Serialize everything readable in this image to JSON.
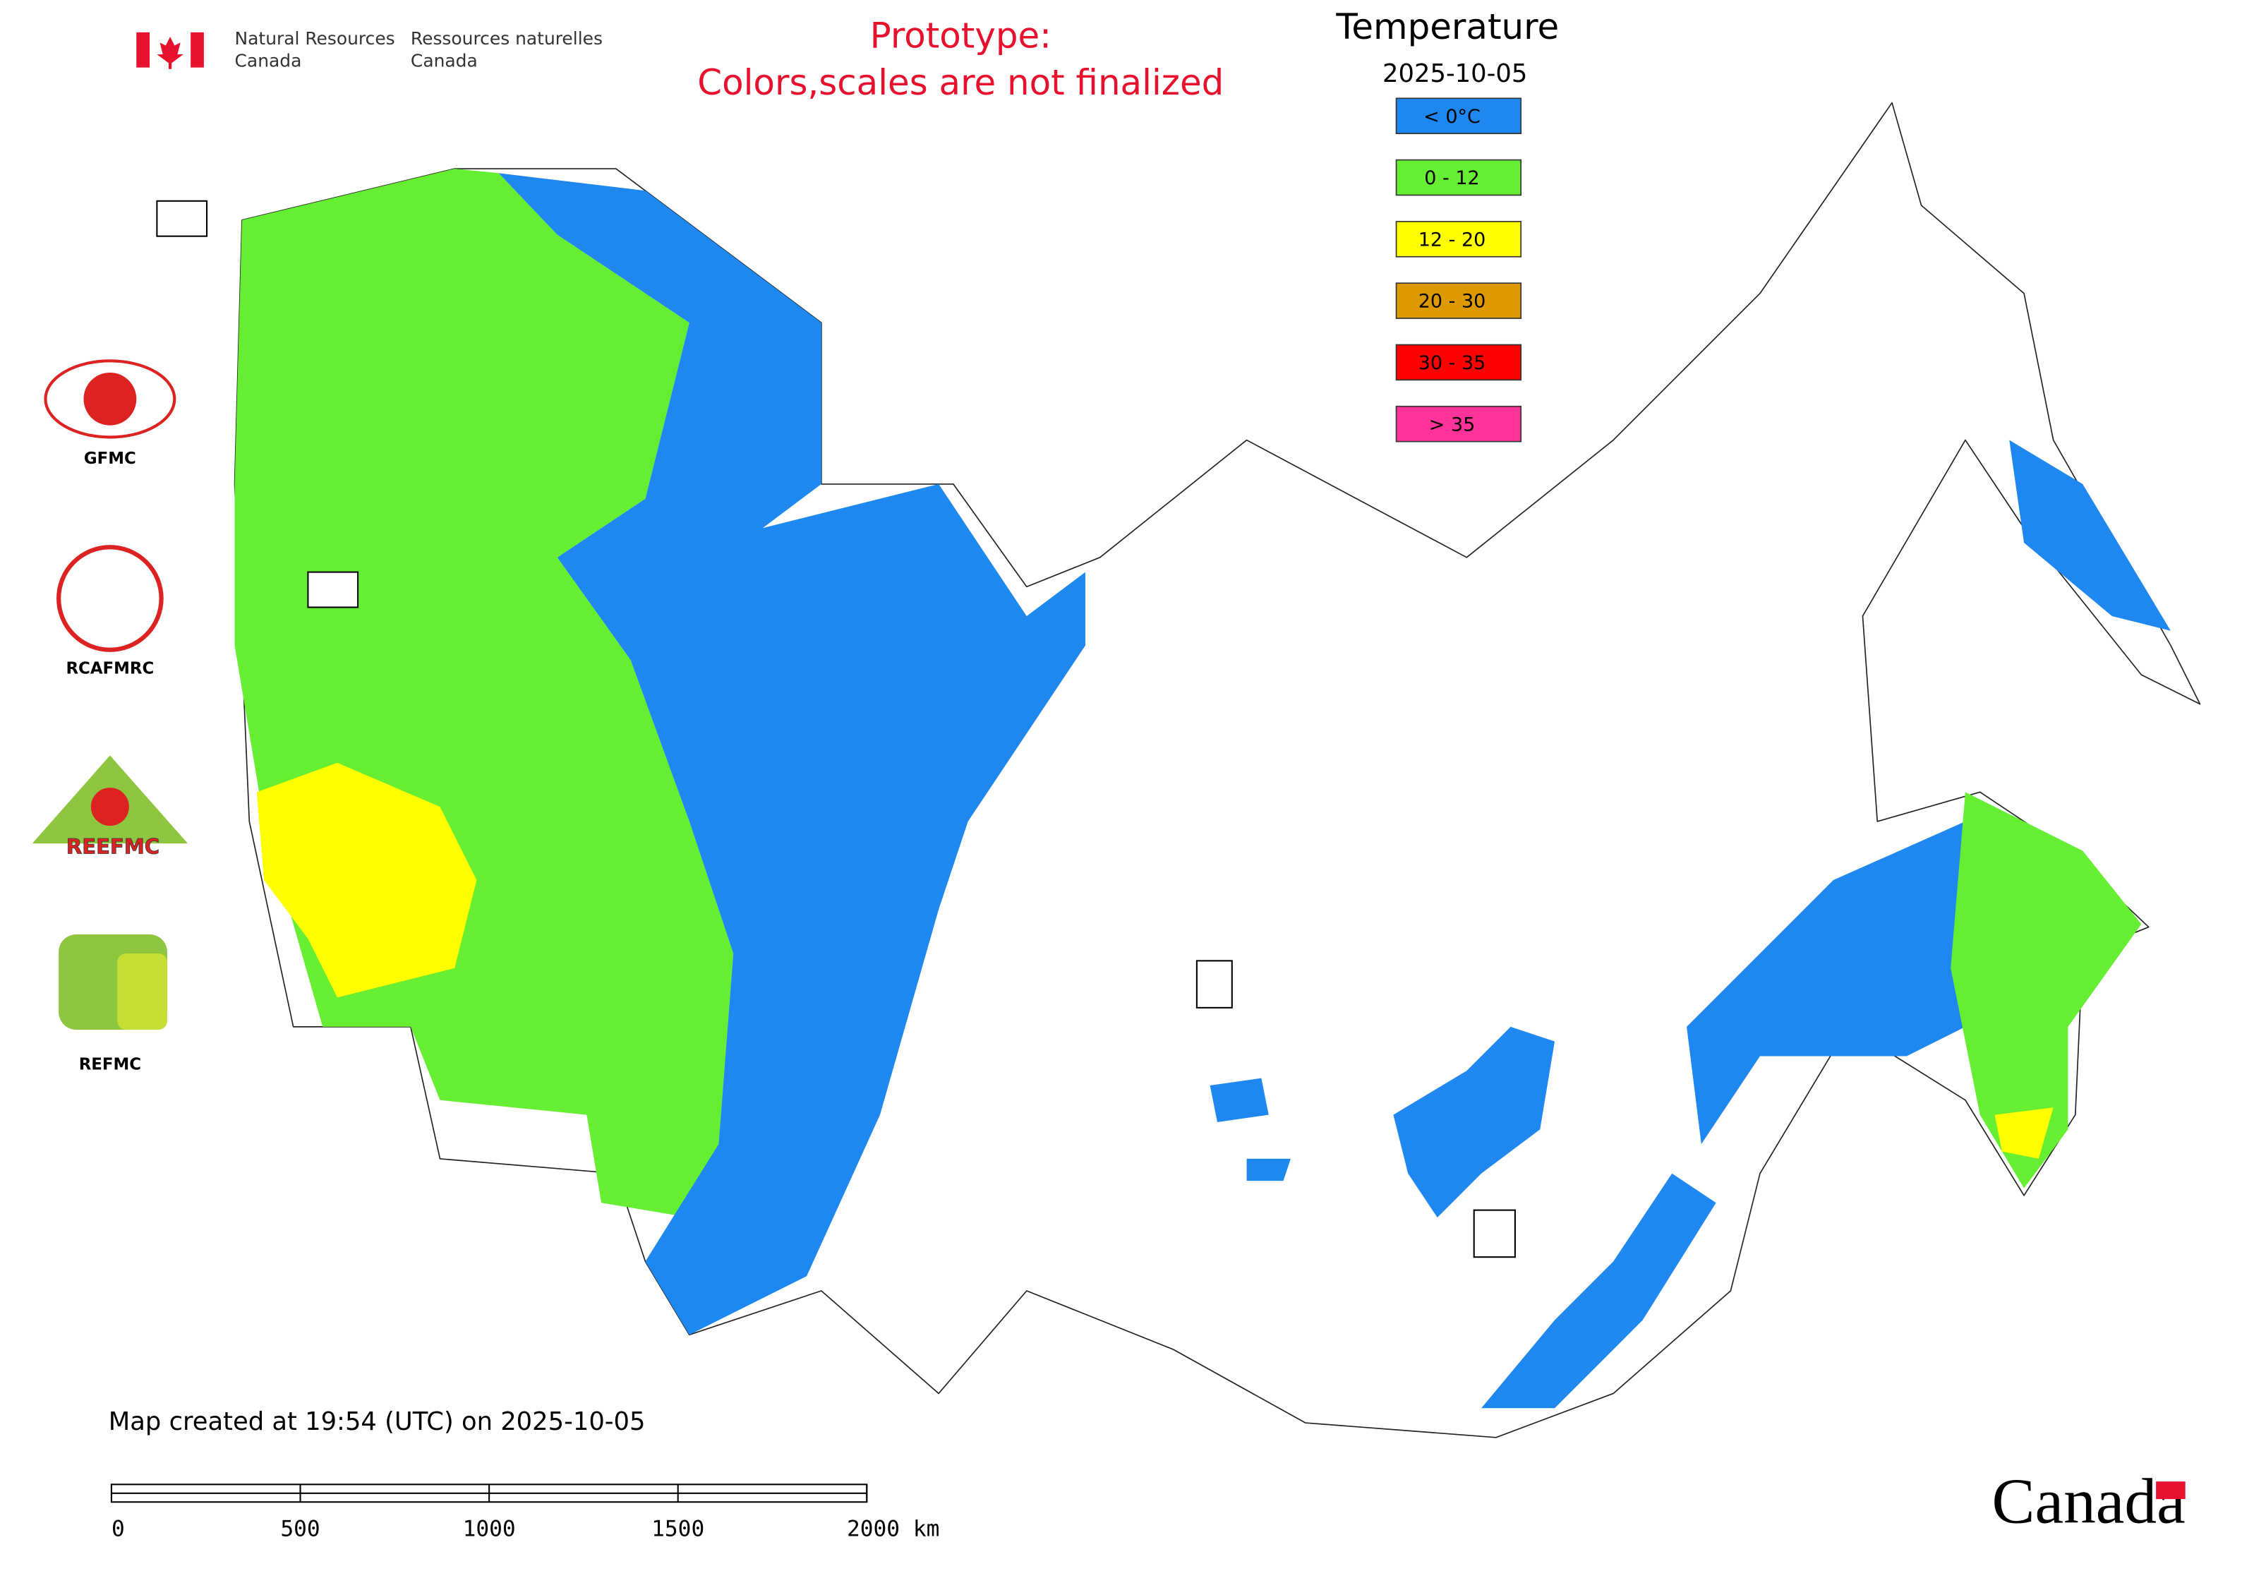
{
  "header": {
    "english": [
      "Natural Resources",
      "Canada"
    ],
    "french": [
      "Ressources naturelles",
      "Canada"
    ]
  },
  "notice": [
    "Prototype:",
    "Colors,scales are not finalized"
  ],
  "legend": {
    "title": "Temperature",
    "date": "2025-10-05",
    "items": [
      {
        "label": "< 0°C",
        "color": "#1e88f0"
      },
      {
        "label": "0 - 12",
        "color": "#66ee33"
      },
      {
        "label": "12 - 20",
        "color": "#ffff00"
      },
      {
        "label": "20 - 30",
        "color": "#dd9900"
      },
      {
        "label": "30 - 35",
        "color": "#ff0000"
      },
      {
        "label": "> 35",
        "color": "#ff3399"
      }
    ]
  },
  "logos": [
    "GFMC",
    "RCAFMRC",
    "REEFMC",
    "REFMC"
  ],
  "map_note": "Map created at 19:54 (UTC) on 2025-10-05",
  "scale_bar": {
    "labels": [
      "0",
      "500",
      "1000",
      "1500",
      "2000 km"
    ]
  },
  "wordmark": "Canada"
}
